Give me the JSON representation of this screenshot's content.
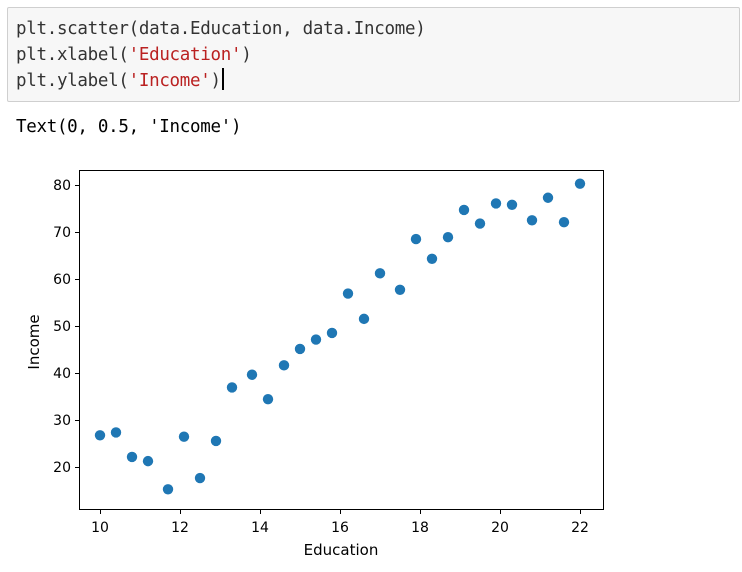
{
  "code_cell": {
    "lines": [
      {
        "prefix": "plt.scatter(data.Education, data.Income)",
        "string": "",
        "suffix": ""
      },
      {
        "prefix": "plt.xlabel(",
        "string": "'Education'",
        "suffix": ")"
      },
      {
        "prefix": "plt.ylabel(",
        "string": "'Income'",
        "suffix": ")"
      }
    ]
  },
  "output": {
    "text": "Text(0, 0.5, 'Income')"
  },
  "chart_data": {
    "type": "scatter",
    "xlabel": "Education",
    "ylabel": "Income",
    "xlim": [
      9.5,
      22.6
    ],
    "ylim": [
      11,
      83
    ],
    "xticks": [
      10,
      12,
      14,
      16,
      18,
      20,
      22
    ],
    "yticks": [
      20,
      30,
      40,
      50,
      60,
      70,
      80
    ],
    "marker_color": "#1f77b4",
    "grid": false,
    "points": [
      {
        "x": 10.0,
        "y": 26.7
      },
      {
        "x": 10.4,
        "y": 27.3
      },
      {
        "x": 10.8,
        "y": 22.1
      },
      {
        "x": 11.2,
        "y": 21.2
      },
      {
        "x": 11.7,
        "y": 15.2
      },
      {
        "x": 12.1,
        "y": 26.4
      },
      {
        "x": 12.5,
        "y": 17.6
      },
      {
        "x": 12.9,
        "y": 25.5
      },
      {
        "x": 13.3,
        "y": 36.9
      },
      {
        "x": 13.8,
        "y": 39.6
      },
      {
        "x": 14.2,
        "y": 34.4
      },
      {
        "x": 14.6,
        "y": 41.6
      },
      {
        "x": 15.0,
        "y": 45.1
      },
      {
        "x": 15.4,
        "y": 47.1
      },
      {
        "x": 15.8,
        "y": 48.5
      },
      {
        "x": 16.2,
        "y": 56.9
      },
      {
        "x": 16.6,
        "y": 51.5
      },
      {
        "x": 17.0,
        "y": 61.2
      },
      {
        "x": 17.5,
        "y": 57.7
      },
      {
        "x": 17.9,
        "y": 68.5
      },
      {
        "x": 18.3,
        "y": 64.3
      },
      {
        "x": 18.7,
        "y": 68.9
      },
      {
        "x": 19.1,
        "y": 74.7
      },
      {
        "x": 19.5,
        "y": 71.8
      },
      {
        "x": 19.9,
        "y": 76.1
      },
      {
        "x": 20.3,
        "y": 75.8
      },
      {
        "x": 20.8,
        "y": 72.5
      },
      {
        "x": 21.2,
        "y": 77.3
      },
      {
        "x": 21.6,
        "y": 72.1
      },
      {
        "x": 22.0,
        "y": 80.3
      }
    ]
  }
}
